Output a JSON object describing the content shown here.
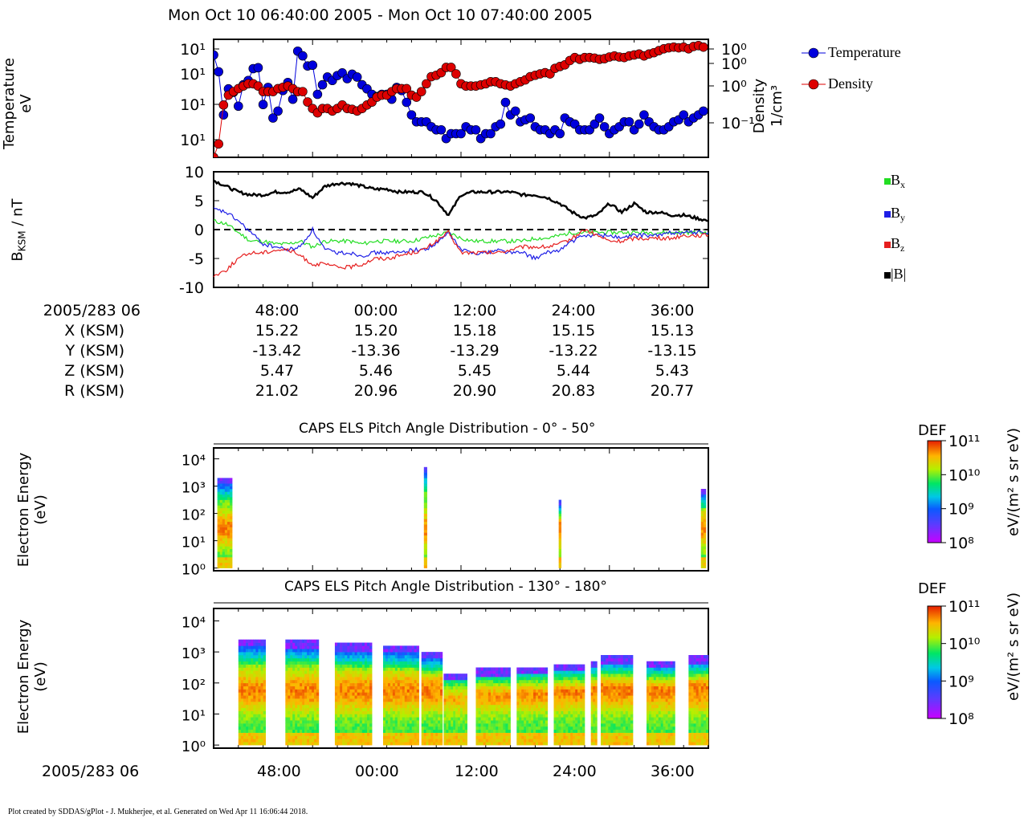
{
  "header": {
    "title": "Mon Oct 10 06:40:00 2005 - Mon Oct 10 07:40:00 2005"
  },
  "time_axis": {
    "start_label": "2005/283 06",
    "ticks": [
      "48:00",
      "00:00",
      "12:00",
      "24:00",
      "36:00"
    ]
  },
  "orbit": {
    "rows": [
      {
        "label": "X (KSM)",
        "values": [
          "15.22",
          "15.20",
          "15.18",
          "15.15",
          "15.13"
        ]
      },
      {
        "label": "Y (KSM)",
        "values": [
          "-13.42",
          "-13.36",
          "-13.29",
          "-13.22",
          "-13.15"
        ]
      },
      {
        "label": "Z (KSM)",
        "values": [
          "5.47",
          "5.46",
          "5.45",
          "5.44",
          "5.43"
        ]
      },
      {
        "label": "R (KSM)",
        "values": [
          "21.02",
          "20.96",
          "20.90",
          "20.83",
          "20.77"
        ]
      }
    ]
  },
  "panels": {
    "plasma": {
      "ylabel_top": "Temperature",
      "ylabel_bottom": "eV",
      "right_label_top": "Density",
      "right_label_bottom": "1/cm³",
      "legend": [
        "Temperature",
        "Density"
      ]
    },
    "mag": {
      "ylabel_main": "B",
      "ylabel_sub": "KSM",
      "ylabel_tail": " / nT",
      "legend": [
        {
          "main": "B",
          "sub": "x",
          "color": "#22dd22"
        },
        {
          "main": "B",
          "sub": "y",
          "color": "#1e1ee6"
        },
        {
          "main": "B",
          "sub": "z",
          "color": "#e61e1e"
        },
        {
          "main": "|B|",
          "sub": "",
          "color": "#000000"
        }
      ]
    },
    "els1": {
      "title": "CAPS ELS Pitch Angle Distribution - 0° - 50°",
      "ylabel_top": "Electron Energy",
      "ylabel_bottom": "(eV)"
    },
    "els2": {
      "title": "CAPS ELS Pitch Angle Distribution - 130° - 180°",
      "ylabel_top": "Electron Energy",
      "ylabel_bottom": "(eV)"
    },
    "colorbar": {
      "title": "DEF",
      "units": "eV/(m² s sr eV)",
      "ticks": [
        "10¹¹",
        "10¹⁰",
        "10⁹",
        "10⁸"
      ]
    }
  },
  "footer": "Plot created by SDDAS/gPlot - J. Mukherjee, et al.  Generated on Wed Apr 11 16:06:44 2018.",
  "chart_data": [
    {
      "type": "line",
      "title": "",
      "xlabel": "",
      "ylabel": "Temperature eV",
      "y2label": "Density 1/cm³",
      "xlim_minutes": [
        40,
        80
      ],
      "ylim": [
        1,
        1000
      ],
      "ylog": true,
      "y_tick_labels": [
        "10¹",
        "10¹",
        "10¹",
        "10¹"
      ],
      "y2_tick_labels": [
        "10⁰",
        "10⁰",
        "10⁰",
        "10⁻¹"
      ],
      "x_minutes": [
        40.0,
        40.4,
        40.8,
        41.2,
        41.6,
        42.0,
        42.4,
        42.8,
        43.2,
        43.6,
        44.0,
        44.4,
        44.8,
        45.2,
        45.6,
        46.0,
        46.4,
        46.8,
        47.2,
        47.6,
        48.0,
        48.4,
        48.8,
        49.2,
        49.6,
        50.0,
        50.4,
        50.8,
        51.2,
        51.6,
        52.0,
        52.4,
        52.8,
        53.2,
        53.6,
        54.0,
        54.4,
        54.8,
        55.2,
        55.6,
        56.0,
        56.4,
        56.8,
        57.2,
        57.6,
        58.0,
        58.4,
        58.8,
        59.2,
        59.6,
        60.0,
        60.4,
        60.8,
        61.2,
        61.6,
        62.0,
        62.4,
        62.8,
        63.2,
        63.6,
        64.0,
        64.4,
        64.8,
        65.2,
        65.6,
        66.0,
        66.4,
        66.8,
        67.2,
        67.6,
        68.0,
        68.4,
        68.8,
        69.2,
        69.6,
        70.0,
        70.4,
        70.8,
        71.2,
        71.6,
        72.0,
        72.4,
        72.8,
        73.2,
        73.6,
        74.0,
        74.4,
        74.8,
        75.2,
        75.6,
        76.0,
        76.4,
        76.8,
        77.2,
        77.6,
        78.0,
        78.4,
        78.8,
        79.2,
        79.6
      ],
      "series": [
        {
          "name": "Temperature",
          "color": "#0000dd",
          "values": [
            400,
            150,
            12,
            55,
            45,
            20,
            70,
            90,
            180,
            190,
            22,
            60,
            10,
            15,
            50,
            80,
            30,
            500,
            380,
            210,
            220,
            40,
            70,
            110,
            90,
            120,
            140,
            100,
            130,
            110,
            70,
            55,
            40,
            35,
            40,
            40,
            30,
            60,
            50,
            25,
            12,
            8,
            8,
            8,
            6,
            5,
            5,
            3,
            4,
            4,
            4,
            6,
            5,
            5,
            3,
            4,
            4,
            6,
            7,
            25,
            12,
            15,
            8,
            9,
            10,
            6,
            5,
            5,
            4,
            5,
            4,
            10,
            8,
            7,
            5,
            5,
            5,
            7,
            10,
            6,
            4,
            5,
            6,
            8,
            8,
            5,
            7,
            12,
            8,
            6,
            5,
            5,
            6,
            8,
            9,
            12,
            8,
            10,
            12,
            15
          ]
        },
        {
          "name": "Density",
          "color": "#dd0000",
          "values": [
            0.02,
            0.04,
            0.3,
            0.5,
            0.6,
            0.7,
            0.8,
            0.9,
            0.9,
            0.8,
            0.6,
            0.6,
            0.6,
            0.7,
            0.75,
            0.8,
            0.7,
            0.6,
            0.6,
            0.35,
            0.25,
            0.2,
            0.25,
            0.25,
            0.22,
            0.25,
            0.3,
            0.25,
            0.24,
            0.22,
            0.25,
            0.3,
            0.35,
            0.45,
            0.5,
            0.5,
            0.6,
            0.7,
            0.7,
            0.7,
            0.5,
            0.45,
            0.6,
            0.9,
            1.3,
            1.4,
            1.6,
            2.1,
            2.1,
            1.5,
            0.9,
            0.8,
            0.8,
            0.8,
            0.85,
            0.9,
            1.0,
            1.0,
            0.9,
            0.85,
            0.8,
            0.9,
            1.0,
            1.1,
            1.3,
            1.4,
            1.5,
            1.6,
            1.5,
            2.0,
            2.2,
            2.4,
            3.0,
            3.5,
            3.2,
            3.5,
            3.5,
            3.4,
            3.2,
            3.3,
            3.6,
            3.8,
            3.6,
            3.5,
            3.8,
            4.0,
            4.2,
            3.8,
            4.2,
            4.5,
            5.0,
            5.5,
            5.8,
            6.0,
            5.8,
            6.0,
            5.5,
            6.2,
            6.5,
            6.0
          ]
        }
      ]
    },
    {
      "type": "line",
      "title": "",
      "xlabel": "",
      "ylabel": "BKSM / nT",
      "xlim_minutes": [
        40,
        80
      ],
      "ylim": [
        -10,
        10
      ],
      "y_ticks": [
        10,
        5,
        0,
        -5,
        -10
      ],
      "zero_line": true,
      "x_minutes": [
        40,
        41,
        42,
        43,
        44,
        45,
        46,
        47,
        48,
        49,
        50,
        51,
        52,
        53,
        54,
        55,
        56,
        57,
        58,
        59,
        60,
        61,
        62,
        63,
        64,
        65,
        66,
        67,
        68,
        69,
        70,
        71,
        72,
        73,
        74,
        75,
        76,
        77,
        78,
        79,
        80
      ],
      "series": [
        {
          "name": "Bx",
          "color": "#22dd22",
          "values": [
            1.5,
            1.0,
            -0.5,
            -2.0,
            -2.0,
            -2.5,
            -2.5,
            -2.0,
            -3.0,
            -2.0,
            -2.0,
            -2.0,
            -2.5,
            -2.0,
            -2.0,
            -2.0,
            -2.0,
            -1.5,
            -1.0,
            -0.5,
            -1.5,
            -2.0,
            -2.0,
            -2.0,
            -2.0,
            -2.0,
            -1.5,
            -1.5,
            -1.0,
            -0.5,
            -0.5,
            -0.5,
            -0.5,
            -0.5,
            -0.5,
            -0.5,
            -0.5,
            -0.5,
            -0.5,
            -0.5,
            -0.5
          ]
        },
        {
          "name": "By",
          "color": "#1e1ee6",
          "values": [
            3.5,
            3.0,
            1.5,
            -0.5,
            -2.5,
            -3.0,
            -3.5,
            -3.0,
            0.0,
            -3.5,
            -4.0,
            -4.0,
            -4.5,
            -4.0,
            -4.0,
            -4.0,
            -3.5,
            -3.5,
            -2.5,
            -0.5,
            -3.5,
            -4.0,
            -4.0,
            -3.5,
            -4.0,
            -4.0,
            -5.0,
            -4.0,
            -3.5,
            -2.0,
            -1.0,
            -1.0,
            -1.0,
            -1.5,
            -1.0,
            -1.0,
            -1.0,
            -0.5,
            -0.5,
            -0.5,
            -0.5
          ]
        },
        {
          "name": "Bz",
          "color": "#e61e1e",
          "values": [
            -8.0,
            -7.0,
            -5.0,
            -4.0,
            -4.0,
            -3.5,
            -3.5,
            -4.5,
            -6.0,
            -6.0,
            -6.5,
            -6.5,
            -6.0,
            -5.0,
            -5.0,
            -4.5,
            -4.0,
            -3.5,
            -2.0,
            -0.5,
            -4.0,
            -4.0,
            -4.0,
            -4.0,
            -3.5,
            -3.0,
            -3.0,
            -3.0,
            -2.5,
            -1.5,
            0.0,
            -1.0,
            -2.0,
            -2.0,
            -1.5,
            -1.5,
            -1.5,
            -1.5,
            -1.0,
            -1.0,
            -1.0
          ]
        },
        {
          "name": "|B|",
          "color": "#000000",
          "values": [
            8.5,
            7.5,
            6.5,
            6.0,
            6.0,
            6.5,
            6.5,
            7.0,
            5.5,
            7.5,
            8.0,
            8.0,
            7.5,
            7.0,
            7.0,
            6.5,
            6.5,
            6.5,
            5.0,
            2.5,
            6.0,
            6.5,
            6.5,
            6.5,
            6.5,
            6.0,
            6.0,
            5.5,
            4.5,
            3.0,
            2.0,
            2.5,
            4.5,
            3.0,
            4.5,
            3.0,
            3.0,
            2.5,
            2.5,
            2.0,
            1.5
          ]
        }
      ]
    },
    {
      "type": "heatmap",
      "title": "CAPS ELS Pitch Angle Distribution - 0° - 50°",
      "ylabel": "Electron Energy (eV)",
      "ylog": true,
      "y_tick_labels": [
        "10⁴",
        "10³",
        "10²",
        "10¹",
        "10⁰"
      ],
      "color_scale": [
        "10⁸",
        "10⁹",
        "10¹⁰",
        "10¹¹"
      ],
      "bursts_minutes": [
        {
          "start": 40.3,
          "end": 41.5,
          "top_energy_log": 3.3
        },
        {
          "start": 57.0,
          "end": 57.25,
          "top_energy_log": 3.7
        },
        {
          "start": 67.9,
          "end": 68.1,
          "top_energy_log": 2.5
        },
        {
          "start": 79.4,
          "end": 79.8,
          "top_energy_log": 2.9
        }
      ]
    },
    {
      "type": "heatmap",
      "title": "CAPS ELS Pitch Angle Distribution - 130° - 180°",
      "ylabel": "Electron Energy (eV)",
      "ylog": true,
      "y_tick_labels": [
        "10⁴",
        "10³",
        "10²",
        "10¹",
        "10⁰"
      ],
      "color_scale": [
        "10⁸",
        "10⁹",
        "10¹⁰",
        "10¹¹"
      ],
      "blocks_minutes": [
        {
          "start": 42.0,
          "end": 44.2,
          "top_energy_log": 3.4
        },
        {
          "start": 45.8,
          "end": 48.5,
          "top_energy_log": 3.35
        },
        {
          "start": 49.8,
          "end": 52.8,
          "top_energy_log": 3.25
        },
        {
          "start": 53.7,
          "end": 56.6,
          "top_energy_log": 3.2
        },
        {
          "start": 56.8,
          "end": 58.5,
          "top_energy_log": 3.0
        },
        {
          "start": 58.6,
          "end": 60.5,
          "top_energy_log": 2.3
        },
        {
          "start": 61.2,
          "end": 64.0,
          "top_energy_log": 2.45
        },
        {
          "start": 64.5,
          "end": 67.0,
          "top_energy_log": 2.5
        },
        {
          "start": 67.5,
          "end": 70.0,
          "top_energy_log": 2.6
        },
        {
          "start": 70.5,
          "end": 71.0,
          "top_energy_log": 2.7
        },
        {
          "start": 71.3,
          "end": 73.9,
          "top_energy_log": 2.85
        },
        {
          "start": 75.0,
          "end": 77.3,
          "top_energy_log": 2.7
        },
        {
          "start": 78.4,
          "end": 80.0,
          "top_energy_log": 2.85
        }
      ]
    }
  ]
}
